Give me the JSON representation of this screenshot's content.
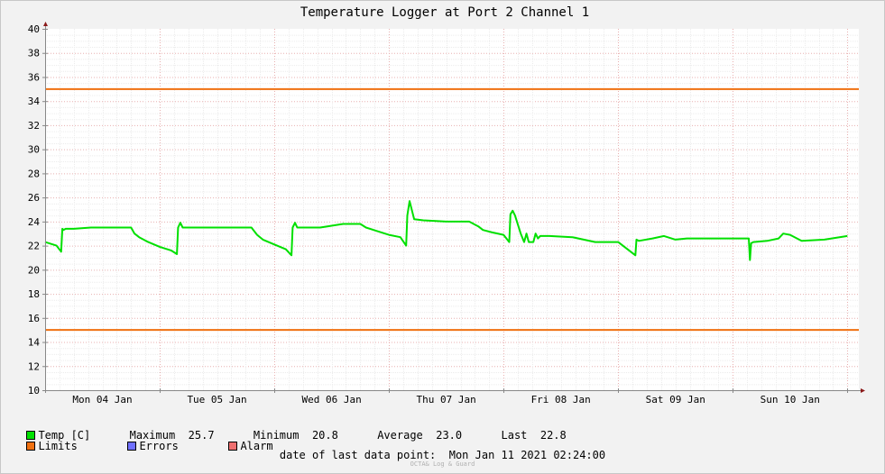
{
  "chart_data": {
    "type": "line",
    "title": "Temperature Logger at Port 2 Channel 1",
    "xlabel": "",
    "ylabel": "",
    "ylim": [
      10,
      40
    ],
    "yticks": [
      10,
      12,
      14,
      16,
      18,
      20,
      22,
      24,
      26,
      28,
      30,
      32,
      34,
      36,
      38,
      40
    ],
    "xlim": [
      0,
      7.1
    ],
    "x_unit": "days since Mon 04 Jan 00:00",
    "x_tick_labels": [
      "Mon 04 Jan",
      "Tue 05 Jan",
      "Wed 06 Jan",
      "Thu 07 Jan",
      "Fri 08 Jan",
      "Sat 09 Jan",
      "Sun 10 Jan"
    ],
    "x_tick_positions": [
      0.5,
      1.5,
      2.5,
      3.5,
      4.5,
      5.5,
      6.5
    ],
    "grid": true,
    "legend_position": "bottom",
    "series": [
      {
        "name": "Temp [C]",
        "color": "#00e000",
        "x": [
          0.0,
          0.1,
          0.14,
          0.15,
          0.16,
          0.18,
          0.25,
          0.4,
          0.6,
          0.75,
          0.78,
          0.82,
          0.9,
          1.0,
          1.1,
          1.15,
          1.16,
          1.18,
          1.2,
          1.26,
          1.4,
          1.6,
          1.8,
          1.85,
          1.9,
          2.0,
          2.1,
          2.15,
          2.16,
          2.18,
          2.2,
          2.26,
          2.4,
          2.6,
          2.75,
          2.8,
          2.9,
          3.0,
          3.1,
          3.15,
          3.16,
          3.18,
          3.22,
          3.3,
          3.5,
          3.7,
          3.78,
          3.82,
          3.9,
          4.0,
          4.05,
          4.06,
          4.08,
          4.1,
          4.15,
          4.18,
          4.2,
          4.22,
          4.24,
          4.26,
          4.28,
          4.3,
          4.32,
          4.4,
          4.6,
          4.8,
          5.0,
          5.15,
          5.16,
          5.18,
          5.3,
          5.4,
          5.5,
          5.6,
          5.8,
          6.0,
          6.1,
          6.14,
          6.15,
          6.16,
          6.18,
          6.3,
          6.4,
          6.44,
          6.5,
          6.6,
          6.8,
          7.0
        ],
        "y": [
          22.3,
          22.0,
          21.5,
          23.4,
          23.3,
          23.4,
          23.4,
          23.5,
          23.5,
          23.5,
          23.0,
          22.7,
          22.3,
          21.9,
          21.6,
          21.3,
          23.5,
          23.9,
          23.5,
          23.5,
          23.5,
          23.5,
          23.5,
          22.9,
          22.5,
          22.1,
          21.7,
          21.2,
          23.5,
          23.9,
          23.5,
          23.5,
          23.5,
          23.8,
          23.8,
          23.5,
          23.2,
          22.9,
          22.7,
          22.0,
          24.5,
          25.7,
          24.2,
          24.1,
          24.0,
          24.0,
          23.6,
          23.3,
          23.1,
          22.9,
          22.3,
          24.6,
          24.9,
          24.5,
          23.0,
          22.3,
          23.0,
          22.3,
          22.3,
          22.3,
          23.0,
          22.6,
          22.8,
          22.8,
          22.7,
          22.3,
          22.3,
          21.2,
          22.5,
          22.4,
          22.6,
          22.8,
          22.5,
          22.6,
          22.6,
          22.6,
          22.6,
          22.6,
          20.8,
          22.2,
          22.3,
          22.4,
          22.6,
          23.0,
          22.9,
          22.4,
          22.5,
          22.8
        ]
      },
      {
        "name": "Limits",
        "color": "#f07010",
        "hlines": [
          35,
          15
        ]
      }
    ]
  },
  "legend": {
    "temp": {
      "label": "Temp [C]",
      "color": "#00e000"
    },
    "limits": {
      "label": "Limits",
      "color": "#f07010"
    },
    "errors": {
      "label": "Errors",
      "color": "#7070ff"
    },
    "alarm": {
      "label": "Alarm",
      "color": "#f07070"
    }
  },
  "stats": {
    "maximum_label": "Maximum",
    "maximum_value": "25.7",
    "minimum_label": "Minimum",
    "minimum_value": "20.8",
    "average_label": "Average",
    "average_value": "23.0",
    "last_label": "Last",
    "last_value": "22.8"
  },
  "footer": {
    "last_point_label": "date of last data point:",
    "last_point_value": "Mon Jan 11 2021 02:24:00",
    "credit": "OCTA& Log & Guard"
  }
}
